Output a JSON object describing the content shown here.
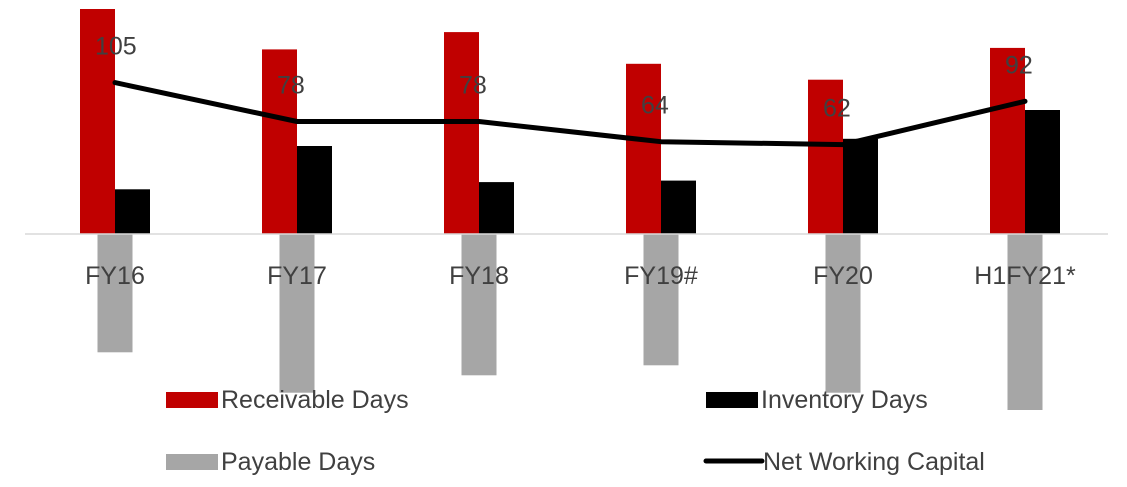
{
  "chart_data": {
    "type": "bar",
    "categories": [
      "FY16",
      "FY17",
      "FY18",
      "FY19#",
      "FY20",
      "H1FY21*"
    ],
    "series": [
      {
        "name": "Receivable Days",
        "kind": "bar",
        "color": "#c00000",
        "values": [
          156,
          128,
          140,
          118,
          107,
          129
        ]
      },
      {
        "name": "Inventory Days",
        "kind": "bar",
        "color": "#000000",
        "values": [
          31,
          61,
          36,
          37,
          66,
          86
        ]
      },
      {
        "name": "Payable Days",
        "kind": "bar",
        "color": "#a6a6a6",
        "values": [
          -82,
          -110,
          -98,
          -91,
          -110,
          -122
        ]
      },
      {
        "name": "Net Working Capital",
        "kind": "line",
        "color": "#000000",
        "values": [
          105,
          78,
          78,
          64,
          62,
          92
        ]
      }
    ],
    "data_labels": [
      "105",
      "78",
      "78",
      "64",
      "62",
      "92"
    ],
    "ylim": [
      -140,
      156
    ],
    "legend_position": "bottom",
    "grid": false
  }
}
